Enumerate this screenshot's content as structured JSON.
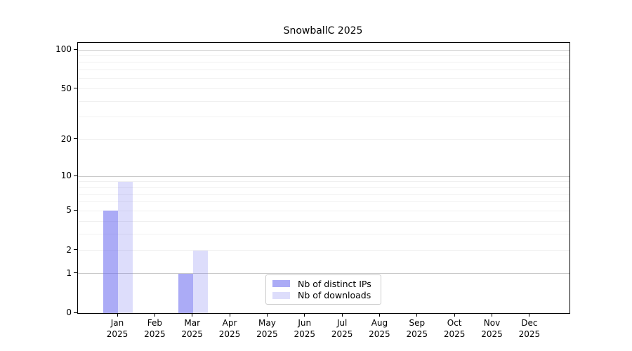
{
  "chart_data": {
    "type": "bar",
    "title": "SnowballC 2025",
    "x_tick_months": [
      "Jan",
      "Feb",
      "Mar",
      "Apr",
      "May",
      "Jun",
      "Jul",
      "Aug",
      "Sep",
      "Oct",
      "Nov",
      "Dec"
    ],
    "x_tick_year": "2025",
    "series": [
      {
        "name": "Nb of distinct IPs",
        "color": "rgba(102,102,238,0.55)",
        "values": [
          5,
          0,
          1,
          0,
          0,
          0,
          0,
          0,
          0,
          0,
          0,
          0
        ]
      },
      {
        "name": "Nb of downloads",
        "color": "rgba(102,102,238,0.22)",
        "values": [
          9,
          0,
          2,
          0,
          0,
          0,
          0,
          0,
          0,
          0,
          0,
          0
        ]
      }
    ],
    "y_axis": {
      "scale": "log1p",
      "tick_labels": [
        "0",
        "1",
        "2",
        "5",
        "10",
        "20",
        "50",
        "100"
      ],
      "tick_values": [
        0,
        1,
        2,
        5,
        10,
        20,
        50,
        100
      ],
      "major_gridlines": [
        1,
        10,
        100
      ],
      "minor_gridlines": [
        2,
        3,
        4,
        5,
        6,
        7,
        8,
        9,
        20,
        30,
        40,
        50,
        60,
        70,
        80,
        90
      ],
      "ylim": [
        0,
        113
      ]
    },
    "legend": {
      "position": "lower-center-inside",
      "entries": [
        "Nb of distinct IPs",
        "Nb of downloads"
      ]
    },
    "grid": true,
    "colors": {
      "bar_distinct_ips": "rgba(102,102,238,0.55)",
      "bar_downloads": "rgba(102,102,238,0.22)",
      "major_grid": "#c9c9c9",
      "minor_grid": "#f0f0f0",
      "axis": "#000000",
      "background": "#ffffff"
    }
  }
}
